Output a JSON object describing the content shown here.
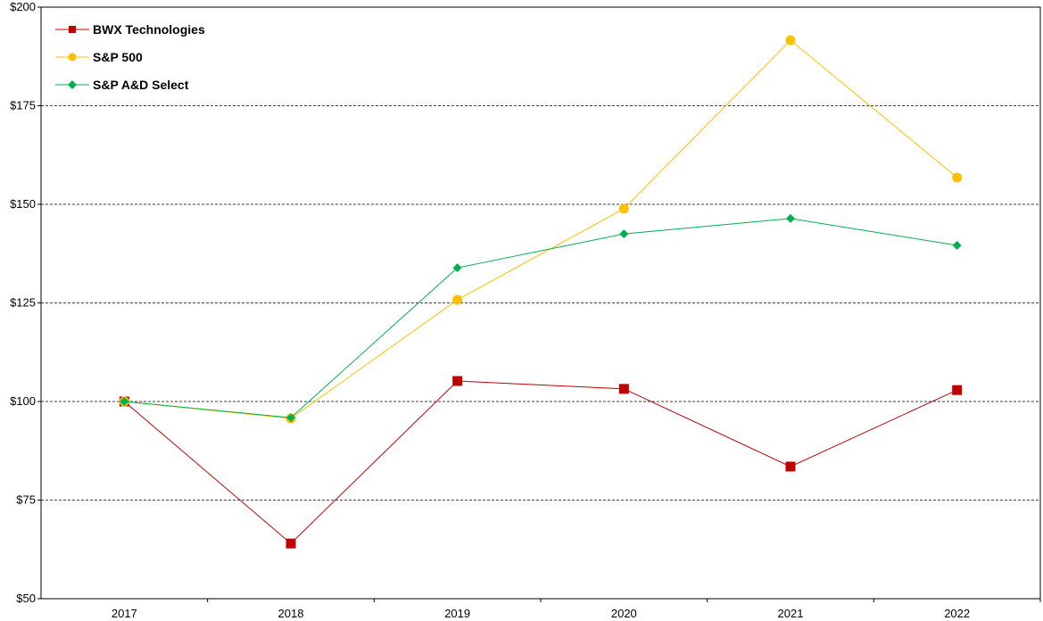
{
  "chart_data": {
    "type": "line",
    "title": "",
    "xlabel": "",
    "ylabel": "",
    "categories": [
      "2017",
      "2018",
      "2019",
      "2020",
      "2021",
      "2022"
    ],
    "ylim": [
      50,
      200
    ],
    "yticks": [
      50,
      75,
      100,
      125,
      150,
      175,
      200
    ],
    "ytick_labels": [
      "$50",
      "$75",
      "$100",
      "$125",
      "$150",
      "$175",
      "$200"
    ],
    "grid": "horizontal dashed",
    "legend_position": "top-left",
    "series": [
      {
        "name": "BWX Technologies",
        "color": "#C00000",
        "marker": "square",
        "values": [
          100,
          64.0,
          105.2,
          103.2,
          83.5,
          102.9
        ]
      },
      {
        "name": "S&P 500",
        "color": "#FFC000",
        "marker": "circle",
        "values": [
          100,
          95.7,
          125.8,
          148.9,
          191.6,
          156.8
        ]
      },
      {
        "name": "S&P A&D Select",
        "color": "#00B050",
        "marker": "diamond",
        "values": [
          100,
          95.9,
          133.9,
          142.5,
          146.4,
          139.6
        ]
      }
    ]
  }
}
